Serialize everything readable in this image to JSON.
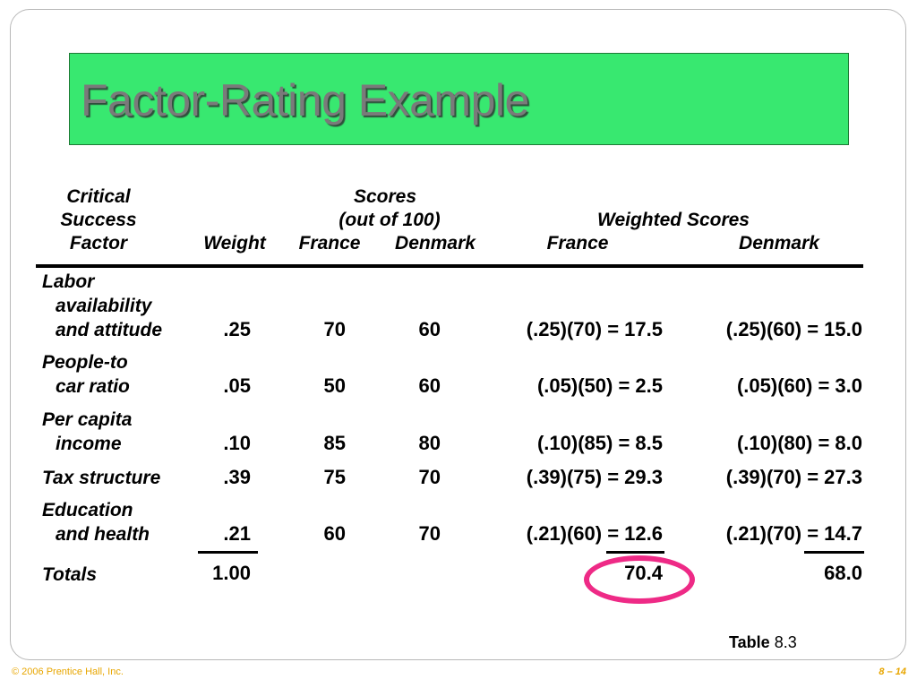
{
  "title": "Factor-Rating Example",
  "headers": {
    "critical": "Critical",
    "success": "Success",
    "factor": "Factor",
    "weight": "Weight",
    "scores": "Scores",
    "out_of": "(out of 100)",
    "france": "France",
    "denmark": "Denmark",
    "weighted_scores": "Weighted Scores",
    "ws_france": "France",
    "ws_denmark": "Denmark"
  },
  "rows": [
    {
      "factor_lines": [
        "Labor",
        "availability",
        "and attitude"
      ],
      "weight": ".25",
      "france": "70",
      "denmark": "60",
      "ws_france": "(.25)(70) = 17.5",
      "ws_denmark": "(.25)(60) = 15.0"
    },
    {
      "factor_lines": [
        "People-to",
        "car ratio"
      ],
      "weight": ".05",
      "france": "50",
      "denmark": "60",
      "ws_france": "(.05)(50) = 2.5",
      "ws_denmark": "(.05)(60) = 3.0"
    },
    {
      "factor_lines": [
        "Per capita",
        "income"
      ],
      "weight": ".10",
      "france": "85",
      "denmark": "80",
      "ws_france": "(.10)(85) = 8.5",
      "ws_denmark": "(.10)(80) = 8.0"
    },
    {
      "factor_lines": [
        "Tax structure"
      ],
      "weight": ".39",
      "france": "75",
      "denmark": "70",
      "ws_france": "(.39)(75) = 29.3",
      "ws_denmark": "(.39)(70) = 27.3"
    },
    {
      "factor_lines": [
        "Education",
        "and health"
      ],
      "weight": ".21",
      "france": "60",
      "denmark": "70",
      "ws_france": "(.21)(60) = 12.6",
      "ws_denmark": "(.21)(70) = 14.7"
    }
  ],
  "totals": {
    "label": "Totals",
    "weight": "1.00",
    "ws_france": "70.4",
    "ws_denmark": "68.0"
  },
  "table_ref": {
    "label": "Table",
    "number": "8.3"
  },
  "footer": {
    "copyright": "© 2006 Prentice Hall, Inc.",
    "page": "8 – 14"
  },
  "colors": {
    "title_bg": "#38e870",
    "title_text": "#7a7a7a",
    "highlight_circle": "#ee2a86",
    "footer": "#e8a600"
  }
}
